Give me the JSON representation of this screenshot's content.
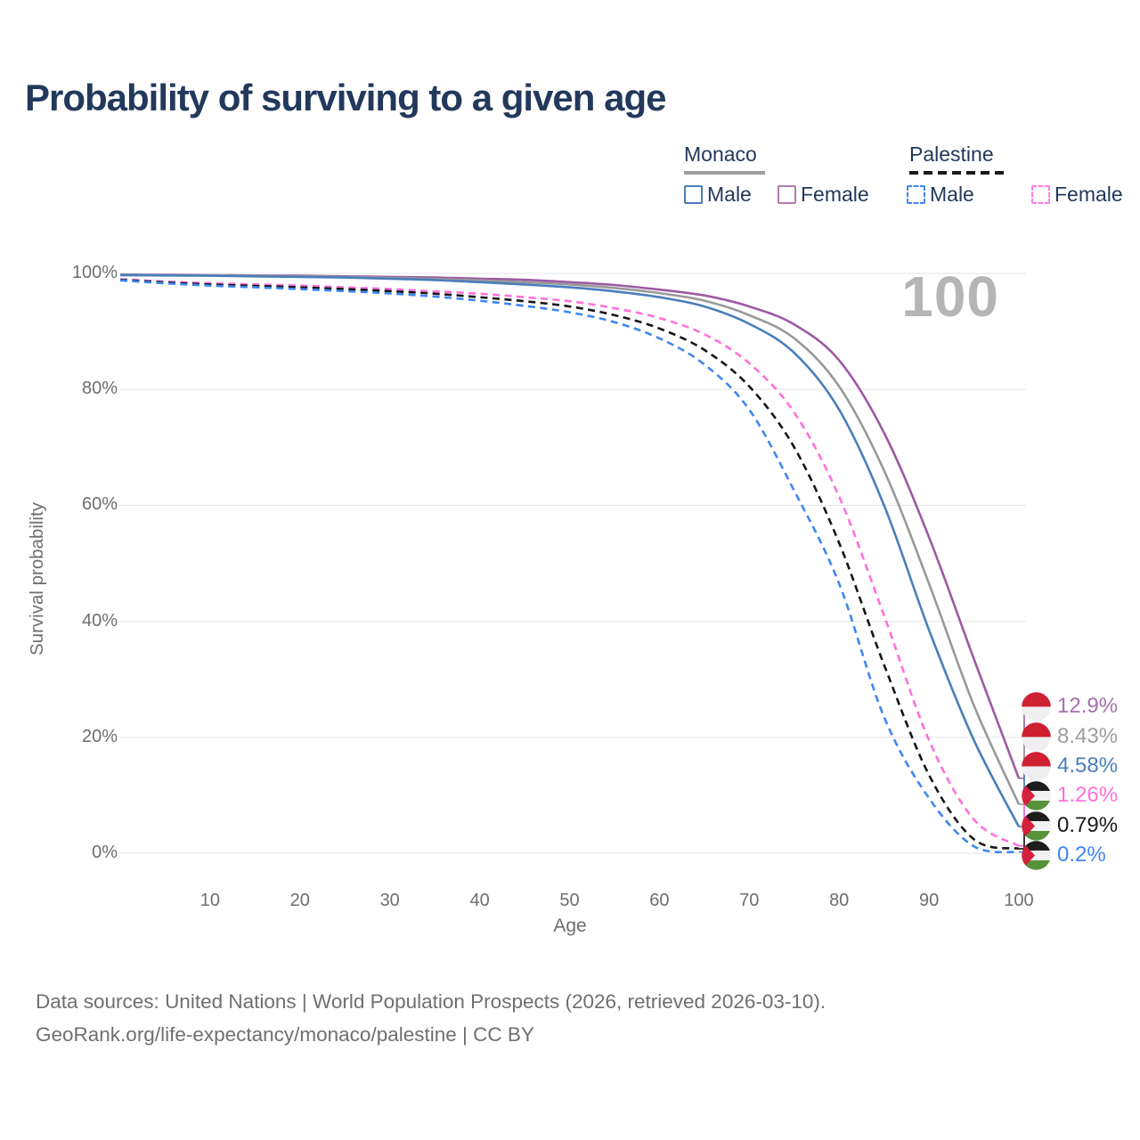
{
  "title": "Probability of surviving to a given age",
  "watermark": "100",
  "legend": {
    "groups": [
      {
        "name": "Monaco",
        "line_style": "solid",
        "line_color": "#9e9e9e",
        "items": [
          {
            "label": "Male",
            "color": "#4a7ebb",
            "dashed": false
          },
          {
            "label": "Female",
            "color": "#b279ae",
            "dashed": false
          }
        ]
      },
      {
        "name": "Palestine",
        "line_style": "dashed",
        "line_color": "#1a1a1a",
        "items": [
          {
            "label": "Male",
            "color": "#3f86f2",
            "dashed": true
          },
          {
            "label": "Female",
            "color": "#ff7ce2",
            "dashed": true
          }
        ]
      }
    ]
  },
  "axes": {
    "y_title": "Survival probability",
    "x_title": "Age",
    "y_tick_labels": [
      "100%",
      "80%",
      "60%",
      "40%",
      "20%",
      "0%"
    ],
    "y_tick_values": [
      100,
      80,
      60,
      40,
      20,
      0
    ],
    "x_tick_labels": [
      "10",
      "20",
      "30",
      "40",
      "50",
      "60",
      "70",
      "80",
      "90",
      "100"
    ],
    "x_tick_values": [
      10,
      20,
      30,
      40,
      50,
      60,
      70,
      80,
      90,
      100
    ]
  },
  "chart_data": {
    "type": "line",
    "title": "Probability of surviving to a given age",
    "xlabel": "Age",
    "ylabel": "Survival probability",
    "xlim": [
      0,
      100
    ],
    "ylim": [
      0,
      100
    ],
    "grid": "horizontal",
    "legend_position": "top-right",
    "hover_age_annotation": "100",
    "x": [
      0,
      5,
      10,
      15,
      20,
      25,
      30,
      35,
      40,
      45,
      50,
      55,
      60,
      65,
      70,
      75,
      80,
      85,
      90,
      95,
      100
    ],
    "series": [
      {
        "name": "Monaco Female",
        "country": "Monaco",
        "sex": "Female",
        "color": "#9c59a3",
        "label_color": "#a670ab",
        "dashed": false,
        "flag": "monaco",
        "end_label": "12.9%",
        "values": [
          99.8,
          99.75,
          99.7,
          99.65,
          99.6,
          99.5,
          99.4,
          99.3,
          99.1,
          98.9,
          98.5,
          98.0,
          97.2,
          96.2,
          94.3,
          91.2,
          85.0,
          72.5,
          54.5,
          33.5,
          12.9
        ]
      },
      {
        "name": "Monaco Both sexes",
        "country": "Monaco",
        "sex": "Both",
        "color": "#999999",
        "label_color": "#9e9e9e",
        "dashed": false,
        "flag": "monaco",
        "end_label": "8.43%",
        "values": [
          99.75,
          99.7,
          99.65,
          99.6,
          99.5,
          99.4,
          99.25,
          99.05,
          98.8,
          98.5,
          98.1,
          97.5,
          96.6,
          95.3,
          92.8,
          88.8,
          80.5,
          66.0,
          46.5,
          25.5,
          8.43
        ]
      },
      {
        "name": "Monaco Male",
        "country": "Monaco",
        "sex": "Male",
        "color": "#4a7ebb",
        "label_color": "#4a7ebb",
        "dashed": false,
        "flag": "monaco",
        "end_label": "4.58%",
        "values": [
          99.7,
          99.65,
          99.6,
          99.5,
          99.4,
          99.3,
          99.1,
          98.85,
          98.5,
          98.1,
          97.6,
          96.9,
          95.9,
          94.3,
          91.3,
          86.3,
          76.5,
          60.0,
          38.5,
          19.5,
          4.58
        ]
      },
      {
        "name": "Palestine Female",
        "country": "Palestine",
        "sex": "Female",
        "color": "#ff70db",
        "label_color": "#ff70db",
        "dashed": true,
        "flag": "palestine",
        "end_label": "1.26%",
        "values": [
          99.0,
          98.6,
          98.3,
          98.1,
          97.9,
          97.6,
          97.3,
          96.9,
          96.5,
          95.9,
          95.2,
          94.0,
          92.3,
          89.5,
          84.5,
          76.0,
          61.5,
          41.0,
          19.5,
          5.8,
          1.26
        ]
      },
      {
        "name": "Palestine Both sexes",
        "country": "Palestine",
        "sex": "Both",
        "color": "#161616",
        "label_color": "#1a1a1a",
        "dashed": true,
        "flag": "palestine",
        "end_label": "0.79%",
        "values": [
          98.9,
          98.45,
          98.1,
          97.85,
          97.6,
          97.3,
          96.95,
          96.5,
          95.9,
          95.2,
          94.3,
          92.8,
          90.5,
          86.8,
          80.5,
          70.0,
          53.5,
          32.5,
          13.5,
          2.4,
          0.79
        ]
      },
      {
        "name": "Palestine Male",
        "country": "Palestine",
        "sex": "Male",
        "color": "#3f86f2",
        "label_color": "#3f86f2",
        "dashed": true,
        "flag": "palestine",
        "end_label": "0.2%",
        "values": [
          98.8,
          98.3,
          97.9,
          97.6,
          97.3,
          96.95,
          96.55,
          96.0,
          95.3,
          94.4,
          93.3,
          91.6,
          88.8,
          84.3,
          76.5,
          62.5,
          46.5,
          23.5,
          9.5,
          1.2,
          0.2
        ]
      }
    ]
  },
  "flag_colors": {
    "monaco": {
      "red": "#ce2031",
      "white": "#efeff2"
    },
    "palestine": {
      "black": "#1d1d1b",
      "white": "#f1f1f3",
      "green": "#569339",
      "red": "#d4213d"
    }
  },
  "footer": {
    "line1": "Data sources: United Nations | World Population Prospects (2026, retrieved 2026-03-10).",
    "line2": "GeoRank.org/life-expectancy/monaco/palestine | CC BY"
  }
}
